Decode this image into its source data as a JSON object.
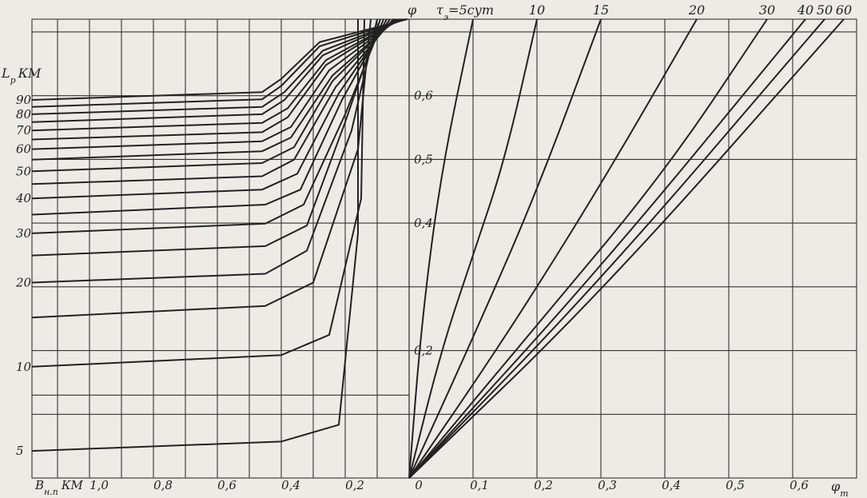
{
  "chart_data": [
    {
      "type": "line",
      "panel": "left",
      "xlabel": "B",
      "xlabel_sub": "н.п",
      "xlabel_unit": "КМ",
      "ylabel": "L",
      "ylabel_sub": "р",
      "ylabel_unit": "КМ",
      "x_ticks": [
        "1,0",
        "0,8",
        "0,6",
        "0,4",
        "0,2",
        "0"
      ],
      "x_tick_values": [
        1.0,
        0.8,
        0.6,
        0.4,
        0.2,
        0
      ],
      "y_ticks": [
        "5",
        "10",
        "20",
        "30",
        "40",
        "50",
        "60",
        "70",
        "80",
        "90"
      ],
      "y_tick_values": [
        5,
        10,
        20,
        30,
        40,
        50,
        60,
        70,
        80,
        90
      ],
      "xlim": [
        1.18,
        0
      ],
      "ylim": [
        4,
        175
      ],
      "y_scale": "log",
      "grid": true,
      "series": [
        {
          "values": [
            [
              1.18,
              5
            ],
            [
              0.4,
              5.4
            ],
            [
              0.22,
              6.2
            ],
            [
              0.16,
              30
            ],
            [
              0.16,
              175
            ]
          ]
        },
        {
          "values": [
            [
              1.18,
              10
            ],
            [
              0.4,
              11
            ],
            [
              0.25,
              13
            ],
            [
              0.15,
              40
            ],
            [
              0.14,
              175
            ]
          ]
        },
        {
          "values": [
            [
              1.18,
              15
            ],
            [
              0.45,
              16.5
            ],
            [
              0.3,
              20
            ],
            [
              0.16,
              60
            ],
            [
              0.12,
              175
            ]
          ]
        },
        {
          "values": [
            [
              1.18,
              20
            ],
            [
              0.45,
              21.5
            ],
            [
              0.32,
              26
            ],
            [
              0.18,
              70
            ],
            [
              0.1,
              175
            ]
          ]
        },
        {
          "values": [
            [
              1.18,
              25
            ],
            [
              0.45,
              27
            ],
            [
              0.32,
              32
            ],
            [
              0.2,
              75
            ],
            [
              0.09,
              175
            ]
          ]
        },
        {
          "values": [
            [
              1.18,
              30
            ],
            [
              0.45,
              32.5
            ],
            [
              0.33,
              38
            ],
            [
              0.2,
              80
            ],
            [
              0.08,
              175
            ]
          ]
        },
        {
          "values": [
            [
              1.18,
              35
            ],
            [
              0.45,
              38
            ],
            [
              0.34,
              43
            ],
            [
              0.21,
              90
            ],
            [
              0.07,
              175
            ]
          ]
        },
        {
          "values": [
            [
              1.18,
              40
            ],
            [
              0.46,
              43
            ],
            [
              0.35,
              49
            ],
            [
              0.22,
              95
            ],
            [
              0.06,
              175
            ]
          ]
        },
        {
          "values": [
            [
              1.18,
              45
            ],
            [
              0.46,
              48
            ],
            [
              0.36,
              55
            ],
            [
              0.23,
              100
            ],
            [
              0.05,
              175
            ]
          ]
        },
        {
          "values": [
            [
              1.18,
              50
            ],
            [
              0.46,
              53.5
            ],
            [
              0.36,
              61
            ],
            [
              0.24,
              105
            ],
            [
              0.045,
              175
            ]
          ]
        },
        {
          "values": [
            [
              1.18,
              55
            ],
            [
              0.46,
              59
            ],
            [
              0.37,
              66
            ],
            [
              0.24,
              110
            ],
            [
              0.04,
              175
            ]
          ]
        },
        {
          "values": [
            [
              1.18,
              60
            ],
            [
              0.46,
              64
            ],
            [
              0.37,
              72
            ],
            [
              0.25,
              115
            ],
            [
              0.035,
              175
            ]
          ]
        },
        {
          "values": [
            [
              1.18,
              65
            ],
            [
              0.46,
              69
            ],
            [
              0.38,
              78
            ],
            [
              0.26,
              120
            ],
            [
              0.03,
              175
            ]
          ]
        },
        {
          "values": [
            [
              1.18,
              70
            ],
            [
              0.46,
              74.5
            ],
            [
              0.38,
              84
            ],
            [
              0.26,
              125
            ],
            [
              0.025,
              175
            ]
          ]
        },
        {
          "values": [
            [
              1.18,
              75
            ],
            [
              0.46,
              80
            ],
            [
              0.39,
              90
            ],
            [
              0.27,
              130
            ],
            [
              0.02,
              175
            ]
          ]
        },
        {
          "values": [
            [
              1.18,
              80
            ],
            [
              0.46,
              85
            ],
            [
              0.39,
              96
            ],
            [
              0.27,
              135
            ],
            [
              0.015,
              175
            ]
          ]
        },
        {
          "values": [
            [
              1.18,
              85
            ],
            [
              0.46,
              90.5
            ],
            [
              0.4,
              101
            ],
            [
              0.28,
              140
            ],
            [
              0.01,
              175
            ]
          ]
        },
        {
          "values": [
            [
              1.18,
              90
            ],
            [
              0.46,
              96
            ],
            [
              0.4,
              107
            ],
            [
              0.28,
              145
            ],
            [
              0.005,
              175
            ]
          ]
        }
      ]
    },
    {
      "type": "line",
      "panel": "right",
      "xlabel": "φ",
      "xlabel_sub": "т",
      "ylabel": "φ",
      "x_ticks": [
        "0",
        "0,1",
        "0,2",
        "0,3",
        "0,4",
        "0,5",
        "0,6"
      ],
      "x_tick_values": [
        0,
        0.1,
        0.2,
        0.3,
        0.4,
        0.5,
        0.6
      ],
      "y_ticks": [
        "0,2",
        "0,4",
        "0,5",
        "0,6"
      ],
      "y_tick_values": [
        0.2,
        0.4,
        0.5,
        0.6
      ],
      "xlim": [
        0,
        0.7
      ],
      "ylim": [
        0,
        0.72
      ],
      "grid": true,
      "series_label_prefix": "τ",
      "series_label_sub": "э",
      "series_label_unit": "сут",
      "series": [
        {
          "name": "5",
          "values": [
            [
              0,
              0
            ],
            [
              0.02,
              0.25
            ],
            [
              0.05,
              0.48
            ],
            [
              0.1,
              0.72
            ]
          ]
        },
        {
          "name": "10",
          "values": [
            [
              0,
              0
            ],
            [
              0.05,
              0.2
            ],
            [
              0.1,
              0.35
            ],
            [
              0.15,
              0.5
            ],
            [
              0.2,
              0.72
            ]
          ]
        },
        {
          "name": "15",
          "values": [
            [
              0,
              0
            ],
            [
              0.1,
              0.22
            ],
            [
              0.2,
              0.45
            ],
            [
              0.3,
              0.72
            ]
          ]
        },
        {
          "name": "20",
          "values": [
            [
              0,
              0
            ],
            [
              0.15,
              0.22
            ],
            [
              0.3,
              0.46
            ],
            [
              0.45,
              0.72
            ]
          ]
        },
        {
          "name": "30",
          "values": [
            [
              0,
              0
            ],
            [
              0.2,
              0.24
            ],
            [
              0.4,
              0.48
            ],
            [
              0.56,
              0.72
            ]
          ]
        },
        {
          "name": "40",
          "values": [
            [
              0,
              0
            ],
            [
              0.3,
              0.33
            ],
            [
              0.62,
              0.72
            ]
          ]
        },
        {
          "name": "50",
          "values": [
            [
              0,
              0
            ],
            [
              0.3,
              0.31
            ],
            [
              0.65,
              0.72
            ]
          ]
        },
        {
          "name": "60",
          "values": [
            [
              0,
              0
            ],
            [
              0.3,
              0.29
            ],
            [
              0.68,
              0.72
            ]
          ]
        }
      ]
    }
  ]
}
